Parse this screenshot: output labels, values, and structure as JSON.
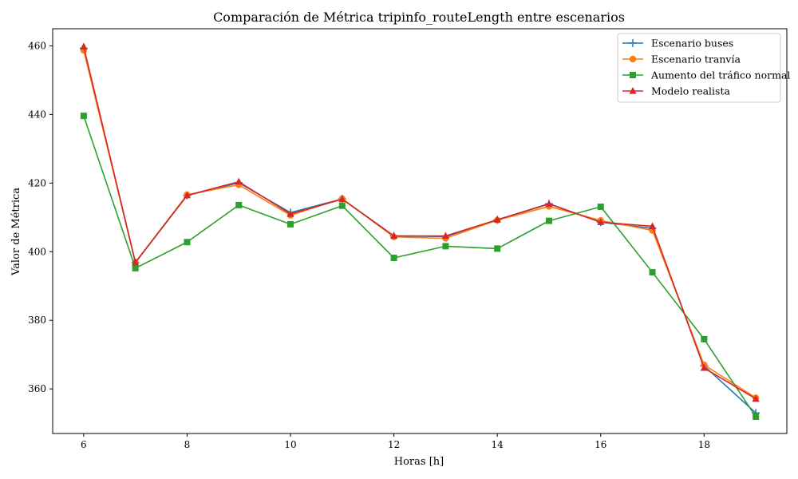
{
  "chart_data": {
    "type": "line",
    "title": "Comparación de Métrica tripinfo_routeLength entre escenarios",
    "xlabel": "Horas [h]",
    "ylabel": "Valor de Métrica",
    "x": [
      6,
      7,
      8,
      9,
      10,
      11,
      12,
      13,
      14,
      15,
      16,
      17,
      18,
      19
    ],
    "xlim": [
      5.4,
      19.6
    ],
    "ylim": [
      347,
      465
    ],
    "xticks": [
      6,
      8,
      10,
      12,
      14,
      16,
      18
    ],
    "yticks": [
      360,
      380,
      400,
      420,
      440,
      460
    ],
    "grid": false,
    "legend_position": "top-right",
    "series": [
      {
        "name": "Escenario buses",
        "color": "#1f77b4",
        "marker": "plus",
        "values": [
          459.3,
          396.8,
          416.4,
          420.1,
          411.4,
          415.4,
          404.6,
          404.4,
          409.3,
          414.0,
          408.6,
          406.8,
          366.7,
          353.0
        ]
      },
      {
        "name": "Escenario tranvía",
        "color": "#ff7f0e",
        "marker": "circle",
        "values": [
          458.7,
          396.9,
          416.6,
          419.5,
          410.6,
          415.5,
          404.3,
          403.9,
          409.2,
          413.2,
          409.1,
          406.2,
          367.0,
          357.4
        ]
      },
      {
        "name": "Aumento del tráfico normal",
        "color": "#2ca02c",
        "marker": "square",
        "values": [
          439.6,
          395.2,
          402.8,
          413.6,
          408.0,
          413.4,
          398.2,
          401.6,
          400.9,
          409.0,
          413.1,
          394.0,
          374.5,
          351.9
        ]
      },
      {
        "name": "Modelo realista",
        "color": "#d62728",
        "marker": "triangle",
        "values": [
          459.8,
          396.9,
          416.4,
          420.4,
          411.0,
          415.3,
          404.6,
          404.6,
          409.3,
          413.9,
          408.6,
          407.4,
          366.1,
          357.1
        ]
      }
    ]
  }
}
